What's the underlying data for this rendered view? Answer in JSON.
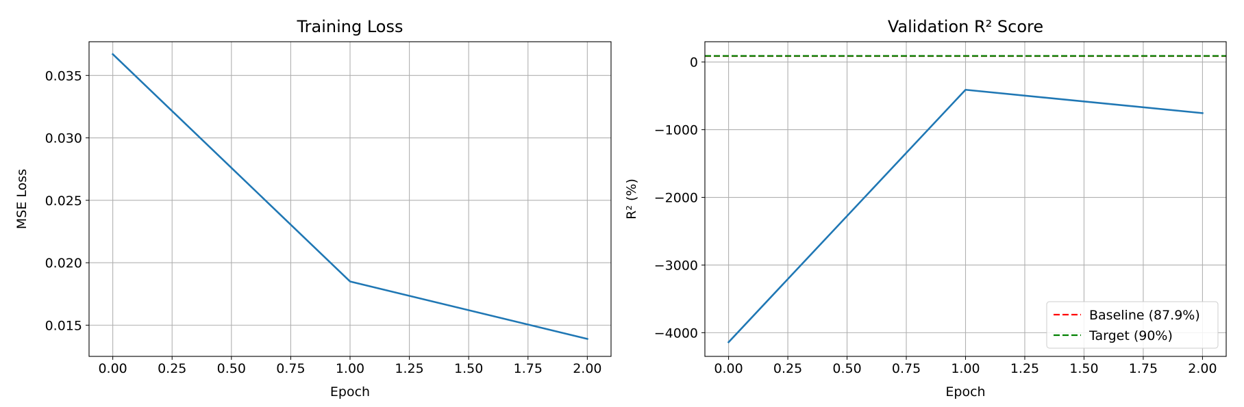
{
  "chart_data": [
    {
      "type": "line",
      "title": "Training Loss",
      "xlabel": "Epoch",
      "ylabel": "MSE Loss",
      "xlim": [
        -0.1,
        2.1
      ],
      "ylim": [
        0.0125,
        0.0377
      ],
      "xticks": [
        0,
        0.25,
        0.5,
        0.75,
        1,
        1.25,
        1.5,
        1.75,
        2
      ],
      "xtick_labels": [
        "0.00",
        "0.25",
        "0.50",
        "0.75",
        "1.00",
        "1.25",
        "1.50",
        "1.75",
        "2.00"
      ],
      "yticks": [
        0.015,
        0.02,
        0.025,
        0.03,
        0.035
      ],
      "ytick_labels": [
        "0.015",
        "0.020",
        "0.025",
        "0.030",
        "0.035"
      ],
      "grid": true,
      "series": [
        {
          "color": "#1f77b4",
          "style": "solid",
          "x": [
            0,
            1,
            2
          ],
          "y": [
            0.0367,
            0.0185,
            0.0139
          ]
        }
      ]
    },
    {
      "type": "line",
      "title": "Validation R² Score",
      "xlabel": "Epoch",
      "ylabel": "R² (%)",
      "xlim": [
        -0.1,
        2.1
      ],
      "ylim": [
        -4350,
        300
      ],
      "xticks": [
        0,
        0.25,
        0.5,
        0.75,
        1,
        1.25,
        1.5,
        1.75,
        2
      ],
      "xtick_labels": [
        "0.00",
        "0.25",
        "0.50",
        "0.75",
        "1.00",
        "1.25",
        "1.50",
        "1.75",
        "2.00"
      ],
      "yticks": [
        -4000,
        -3000,
        -2000,
        -1000,
        0
      ],
      "ytick_labels": [
        "−4000",
        "−3000",
        "−2000",
        "−1000",
        "0"
      ],
      "grid": true,
      "legend_position": "lower right",
      "series": [
        {
          "color": "#1f77b4",
          "style": "solid",
          "x": [
            0,
            1,
            2
          ],
          "y": [
            -4140,
            -410,
            -755
          ]
        }
      ],
      "hlines": [
        {
          "name": "Baseline (87.9%)",
          "y": 87.9,
          "color": "#ff0000",
          "style": "dashed"
        },
        {
          "name": "Target (90%)",
          "y": 90,
          "color": "#008000",
          "style": "dashed"
        }
      ]
    }
  ]
}
